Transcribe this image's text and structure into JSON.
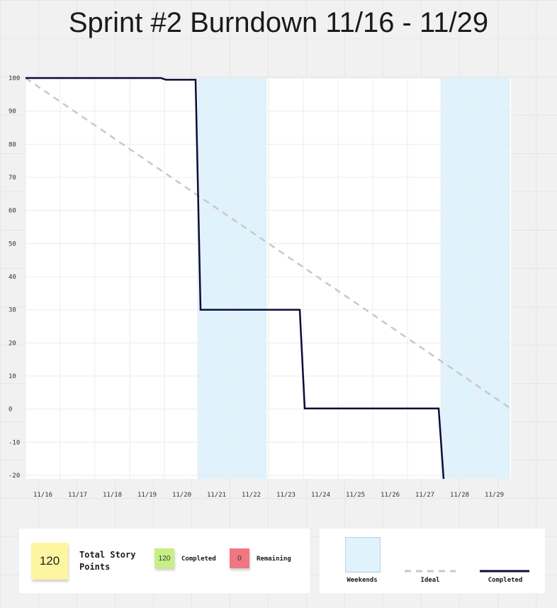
{
  "chart_data": {
    "type": "line",
    "title": "Sprint #2 Burndown 11/16 - 11/29",
    "categories": [
      "11/16",
      "11/17",
      "11/18",
      "11/19",
      "11/20",
      "11/21",
      "11/22",
      "11/23",
      "11/24",
      "11/25",
      "11/26",
      "11/27",
      "11/28",
      "11/29"
    ],
    "ylim": [
      -20,
      100
    ],
    "yticks": [
      100,
      90,
      80,
      70,
      60,
      50,
      40,
      30,
      20,
      10,
      0,
      -10,
      -20
    ],
    "weekends": [
      {
        "start": "11/20",
        "end": "11/21"
      },
      {
        "start": "11/27",
        "end": "11/28"
      }
    ],
    "series": [
      {
        "name": "Ideal",
        "style": "dashed",
        "color": "#c8c8c8",
        "points": [
          {
            "x": "11/16",
            "y": 100
          },
          {
            "x": "11/29",
            "y": 0
          }
        ]
      },
      {
        "name": "Completed",
        "style": "solid",
        "color": "#0c0c3a",
        "points": [
          {
            "x": "11/16",
            "y": 100
          },
          {
            "x": "11/20",
            "y": 99.5
          },
          {
            "x": "11/21",
            "y": 30
          },
          {
            "x": "11/23",
            "y": 30
          },
          {
            "x": "11/24",
            "y": 0.2
          },
          {
            "x": "11/27",
            "y": 0.2
          },
          {
            "x": "11/28",
            "y": -20
          }
        ]
      }
    ],
    "grid": true
  },
  "stats": {
    "total_value": "120",
    "total_label": "Total Story Points",
    "completed_value": "120",
    "completed_label": "Completed",
    "remaining_value": "0",
    "remaining_label": "Remaining"
  },
  "legend": {
    "weekends_label": "Weekends",
    "ideal_label": "Ideal",
    "completed_label": "Completed"
  },
  "colors": {
    "weekend": "#e0f2fb",
    "ideal": "#c8c8c8",
    "completed": "#0c0c3a",
    "note_total": "#fdf5a0",
    "note_completed": "#c6ef84",
    "note_remaining": "#f07681"
  }
}
